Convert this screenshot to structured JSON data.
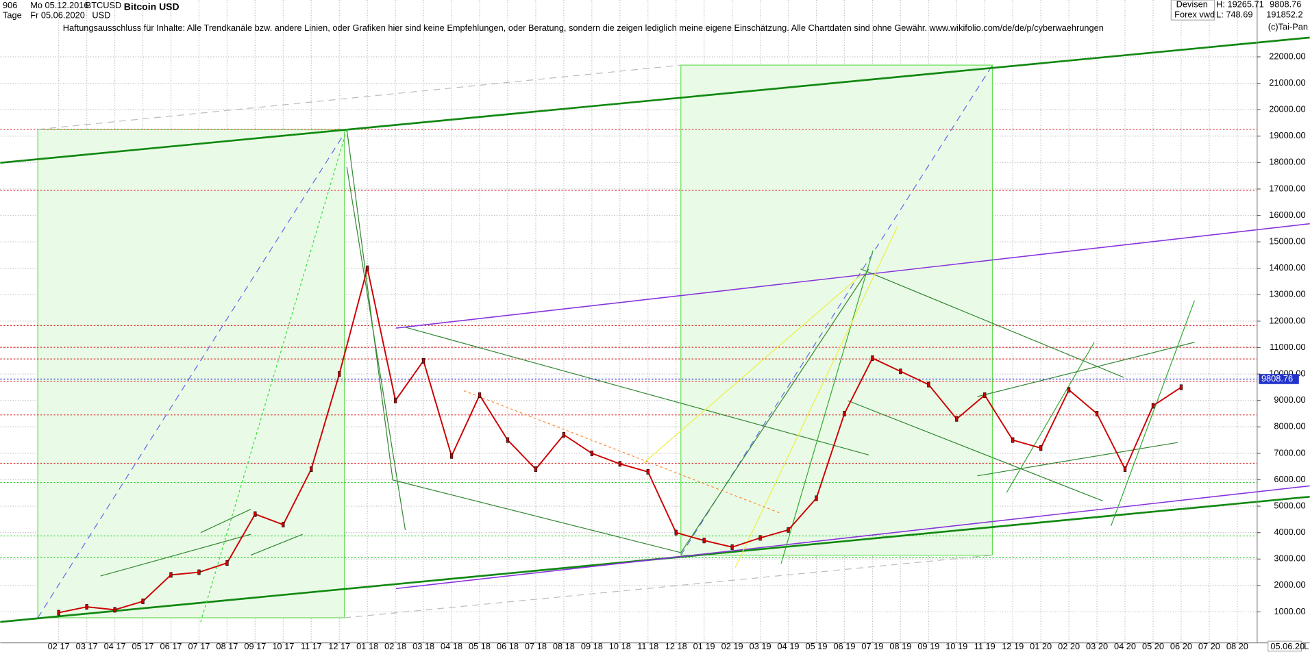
{
  "header": {
    "code": "906",
    "start": "Mo 05.12.2016",
    "symbol": "BTCUSD",
    "currency": "USD",
    "period": "Tage",
    "end": "Fr 05.06.2020",
    "disclaimer": "Haftungsausschluss für Inhalte: Alle Trendkanäle bzw. andere Linien, oder Grafiken hier sind keine Empfehlungen, oder Beratung, sondern die zeigen lediglich meine eigene Einschätzung. Alle Chartdaten sind ohne Gewähr.  www.wikifolio.com/de/de/p/cyberwaehrungen",
    "market": "Devisen",
    "source": "Forex vwd",
    "high": "H: 19265.71",
    "low": "L: 748.69",
    "volume": "191852.2",
    "copyright": "(c)Tai-Pan",
    "date_label": "05.06.20",
    "scale_mode": "L"
  },
  "chart_data": {
    "type": "line",
    "title": "Bitcoin USD",
    "color": "#cc0000",
    "categories": [
      "02 17",
      "03 17",
      "04 17",
      "05 17",
      "06 17",
      "07 17",
      "08 17",
      "09 17",
      "10 17",
      "11 17",
      "12 17",
      "01 18",
      "02 18",
      "03 18",
      "04 18",
      "05 18",
      "06 18",
      "07 18",
      "08 18",
      "09 18",
      "10 18",
      "11 18",
      "12 18",
      "01 19",
      "02 19",
      "03 19",
      "04 19",
      "05 19",
      "06 19",
      "07 19",
      "08 19",
      "09 19",
      "10 19",
      "11 19",
      "12 19",
      "01 20",
      "02 20",
      "03 20",
      "04 20",
      "05 20",
      "06 20",
      "07 20",
      "08 20"
    ],
    "values": [
      970,
      1190,
      1080,
      1400,
      2400,
      2500,
      2850,
      4700,
      4300,
      6400,
      10000,
      14000,
      9000,
      10500,
      6900,
      9200,
      7500,
      6400,
      7700,
      7000,
      6600,
      6300,
      4000,
      3700,
      3450,
      3800,
      4100,
      5300,
      8500,
      10600,
      10100,
      9600,
      8300,
      9200,
      7500,
      7200,
      9400,
      8500,
      6400,
      8800,
      9500,
      null,
      null
    ],
    "last_value": 9808.76,
    "ylim": [
      -170,
      24150
    ],
    "yticks": [
      {
        "value": 1000,
        "label": "1000.00"
      },
      {
        "value": 2000,
        "label": "2000.00"
      },
      {
        "value": 3000,
        "label": "3000.00"
      },
      {
        "value": 4000,
        "label": "4000.00"
      },
      {
        "value": 5000,
        "label": "5000.00"
      },
      {
        "value": 6000,
        "label": "6000.00"
      },
      {
        "value": 7000,
        "label": "7000.00"
      },
      {
        "value": 8000,
        "label": "8000.00"
      },
      {
        "value": 9000,
        "label": "9000.00"
      },
      {
        "value": 10000,
        "label": "10000.00"
      },
      {
        "value": 11000,
        "label": "11000.00"
      },
      {
        "value": 12000,
        "label": "12000.00"
      },
      {
        "value": 13000,
        "label": "13000.00"
      },
      {
        "value": 14000,
        "label": "14000.00"
      },
      {
        "value": 15000,
        "label": "15000.00"
      },
      {
        "value": 16000,
        "label": "16000.00"
      },
      {
        "value": 17000,
        "label": "17000.00"
      },
      {
        "value": 18000,
        "label": "18000.00"
      },
      {
        "value": 19000,
        "label": "19000.00"
      },
      {
        "value": 20000,
        "label": "20000.00"
      },
      {
        "value": 21000,
        "label": "21000.00"
      },
      {
        "value": 22000,
        "label": "22000.00"
      }
    ],
    "grid": true
  }
}
